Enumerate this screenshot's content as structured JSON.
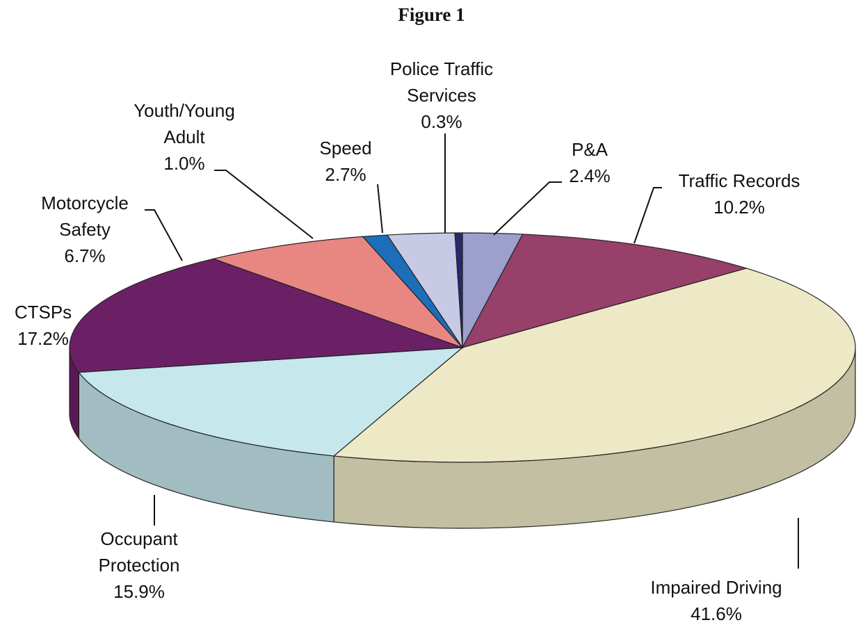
{
  "chart_data": {
    "type": "pie",
    "title": "Figure 1",
    "categories": [
      "P&A",
      "Traffic Records",
      "Impaired Driving",
      "Occupant Protection",
      "CTSPs",
      "Motorcycle Safety",
      "Youth/Young Adult",
      "Speed",
      "Police Traffic Services"
    ],
    "values": [
      2.4,
      10.2,
      41.6,
      15.9,
      17.2,
      6.7,
      1.0,
      2.7,
      0.3
    ],
    "value_labels": [
      "2.4%",
      "10.2%",
      "41.6%",
      "15.9%",
      "17.2%",
      "6.7%",
      "1.0%",
      "2.7%",
      "0.3%"
    ],
    "colors": [
      "#9d9fcc",
      "#96406a",
      "#ede9c6",
      "#c6e7eb",
      "#6b2066",
      "#e88782",
      "#1d6eb9",
      "#c8c9e5",
      "#26296e"
    ]
  }
}
